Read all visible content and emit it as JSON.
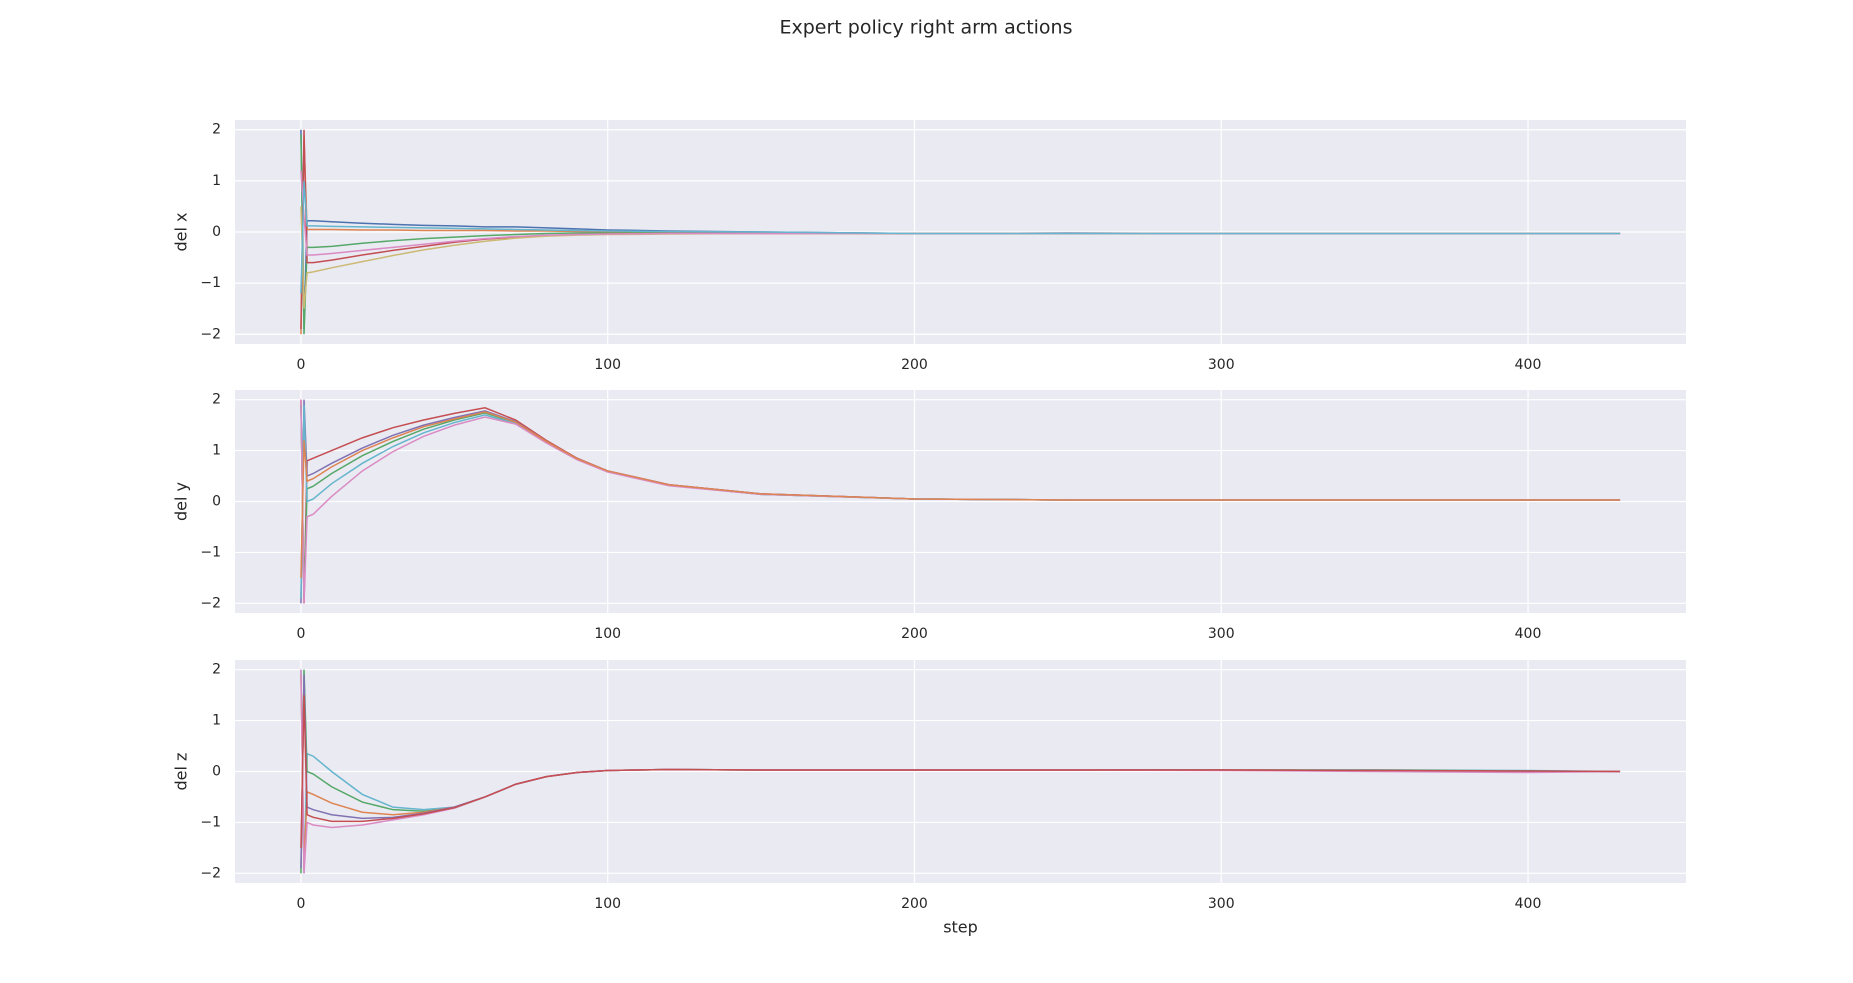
{
  "title": "Expert policy right arm actions",
  "chart_data": [
    {
      "type": "line",
      "ylabel": "del x",
      "x": [
        0,
        1,
        2,
        4,
        10,
        20,
        30,
        40,
        50,
        60,
        70,
        80,
        90,
        100,
        120,
        150,
        200,
        250,
        300,
        350,
        400,
        430
      ],
      "series": [
        {
          "color": "#4C72B0",
          "values": [
            2,
            -1.9,
            0.22,
            0.22,
            0.2,
            0.17,
            0.15,
            0.13,
            0.12,
            0.1,
            0.1,
            0.08,
            0.06,
            0.04,
            0.02,
            0.0,
            -0.03,
            -0.02,
            -0.03,
            -0.03,
            -0.03,
            -0.03
          ]
        },
        {
          "color": "#DD8452",
          "values": [
            -2,
            1.8,
            0.05,
            0.05,
            0.05,
            0.04,
            0.04,
            0.03,
            0.03,
            0.03,
            0.02,
            0.02,
            0.01,
            0.0,
            0.0,
            -0.01,
            -0.03,
            -0.03,
            -0.03,
            -0.03,
            -0.03,
            -0.03
          ]
        },
        {
          "color": "#55A868",
          "values": [
            1.9,
            -2,
            -0.3,
            -0.3,
            -0.28,
            -0.22,
            -0.17,
            -0.13,
            -0.1,
            -0.07,
            -0.05,
            -0.03,
            -0.02,
            -0.02,
            -0.02,
            -0.02,
            -0.03,
            -0.03,
            -0.03,
            -0.03,
            -0.03,
            -0.03
          ]
        },
        {
          "color": "#C44E52",
          "values": [
            -1.9,
            2,
            -0.6,
            -0.6,
            -0.55,
            -0.45,
            -0.36,
            -0.28,
            -0.2,
            -0.14,
            -0.1,
            -0.07,
            -0.05,
            -0.04,
            -0.03,
            -0.03,
            -0.03,
            -0.03,
            -0.03,
            -0.03,
            -0.03,
            -0.03
          ]
        },
        {
          "color": "#CCB974",
          "values": [
            0.5,
            -1.5,
            -0.8,
            -0.78,
            -0.7,
            -0.58,
            -0.46,
            -0.35,
            -0.26,
            -0.18,
            -0.12,
            -0.08,
            -0.06,
            -0.05,
            -0.04,
            -0.03,
            -0.03,
            -0.03,
            -0.03,
            -0.03,
            -0.03,
            -0.03
          ]
        },
        {
          "color": "#DA8BC3",
          "values": [
            1.2,
            0.3,
            -0.45,
            -0.45,
            -0.42,
            -0.36,
            -0.3,
            -0.24,
            -0.18,
            -0.13,
            -0.09,
            -0.06,
            -0.05,
            -0.04,
            -0.03,
            -0.03,
            -0.03,
            -0.03,
            -0.03,
            -0.03,
            -0.03,
            -0.03
          ]
        },
        {
          "color": "#64B5CD",
          "values": [
            -1.2,
            1.0,
            0.12,
            0.12,
            0.11,
            0.1,
            0.09,
            0.08,
            0.07,
            0.06,
            0.05,
            0.04,
            0.03,
            0.02,
            0.01,
            0.0,
            -0.03,
            -0.03,
            -0.03,
            -0.03,
            -0.03,
            -0.03
          ]
        }
      ],
      "xlim": [
        -21.5,
        451.5
      ],
      "ylim": [
        -2.19,
        2.19
      ],
      "xticks": [
        0,
        100,
        200,
        300,
        400
      ],
      "yticks": [
        {
          "value": -2,
          "label": "−2"
        },
        {
          "value": -1,
          "label": "−1"
        },
        0,
        1,
        2
      ],
      "grid": true
    },
    {
      "type": "line",
      "ylabel": "del y",
      "x": [
        0,
        1,
        2,
        4,
        10,
        20,
        30,
        40,
        50,
        60,
        70,
        80,
        90,
        100,
        120,
        150,
        200,
        250,
        300,
        350,
        400,
        430
      ],
      "series": [
        {
          "color": "#C44E52",
          "values": [
            2,
            -2,
            0.8,
            0.85,
            1.0,
            1.25,
            1.45,
            1.6,
            1.73,
            1.84,
            1.6,
            1.2,
            0.85,
            0.6,
            0.33,
            0.15,
            0.05,
            0.03,
            0.03,
            0.03,
            0.03,
            0.03
          ]
        },
        {
          "color": "#8172B3",
          "values": [
            -2,
            2,
            0.5,
            0.55,
            0.75,
            1.05,
            1.3,
            1.5,
            1.65,
            1.78,
            1.57,
            1.18,
            0.84,
            0.6,
            0.33,
            0.15,
            0.05,
            0.03,
            0.03,
            0.03,
            0.03,
            0.03
          ]
        },
        {
          "color": "#55A868",
          "values": [
            1.9,
            -1.9,
            0.25,
            0.3,
            0.55,
            0.9,
            1.18,
            1.42,
            1.6,
            1.74,
            1.55,
            1.17,
            0.83,
            0.59,
            0.32,
            0.14,
            0.05,
            0.03,
            0.03,
            0.03,
            0.03,
            0.03
          ]
        },
        {
          "color": "#64B5CD",
          "values": [
            -1.9,
            1.9,
            0.0,
            0.05,
            0.35,
            0.75,
            1.08,
            1.35,
            1.55,
            1.7,
            1.53,
            1.16,
            0.83,
            0.59,
            0.32,
            0.14,
            0.05,
            0.03,
            0.03,
            0.03,
            0.03,
            0.03
          ]
        },
        {
          "color": "#DA8BC3",
          "values": [
            2,
            -2,
            -0.3,
            -0.25,
            0.1,
            0.6,
            0.98,
            1.28,
            1.5,
            1.66,
            1.52,
            1.15,
            0.82,
            0.58,
            0.31,
            0.14,
            0.05,
            0.03,
            0.03,
            0.03,
            0.03,
            0.03
          ]
        },
        {
          "color": "#DD8452",
          "values": [
            -1.5,
            1.2,
            0.4,
            0.45,
            0.68,
            1.0,
            1.25,
            1.47,
            1.62,
            1.76,
            1.56,
            1.18,
            0.84,
            0.6,
            0.33,
            0.15,
            0.05,
            0.03,
            0.03,
            0.03,
            0.03,
            0.03
          ]
        }
      ],
      "xlim": [
        -21.5,
        451.5
      ],
      "ylim": [
        -2.19,
        2.19
      ],
      "xticks": [
        0,
        100,
        200,
        300,
        400
      ],
      "yticks": [
        {
          "value": -2,
          "label": "−2"
        },
        {
          "value": -1,
          "label": "−1"
        },
        0,
        1,
        2
      ],
      "grid": true
    },
    {
      "type": "line",
      "ylabel": "del z",
      "xlabel": "step",
      "x": [
        0,
        1,
        2,
        4,
        10,
        20,
        30,
        40,
        50,
        60,
        70,
        80,
        90,
        100,
        120,
        150,
        200,
        250,
        300,
        350,
        400,
        430
      ],
      "series": [
        {
          "color": "#64B5CD",
          "values": [
            2,
            -2,
            0.35,
            0.3,
            0.0,
            -0.45,
            -0.7,
            -0.75,
            -0.7,
            -0.5,
            -0.25,
            -0.1,
            -0.02,
            0.02,
            0.04,
            0.03,
            0.03,
            0.03,
            0.03,
            0.03,
            0.02,
            0.0
          ]
        },
        {
          "color": "#55A868",
          "values": [
            -2,
            2,
            0.0,
            -0.05,
            -0.3,
            -0.6,
            -0.75,
            -0.78,
            -0.72,
            -0.5,
            -0.25,
            -0.1,
            -0.02,
            0.02,
            0.04,
            0.03,
            0.03,
            0.03,
            0.03,
            0.03,
            0.01,
            0.0
          ]
        },
        {
          "color": "#DD8452",
          "values": [
            1.9,
            -1.9,
            -0.4,
            -0.45,
            -0.62,
            -0.8,
            -0.85,
            -0.8,
            -0.7,
            -0.5,
            -0.25,
            -0.1,
            -0.02,
            0.02,
            0.04,
            0.03,
            0.03,
            0.03,
            0.03,
            0.02,
            0.0,
            0.0
          ]
        },
        {
          "color": "#8172B3",
          "values": [
            -1.9,
            1.9,
            -0.7,
            -0.75,
            -0.85,
            -0.92,
            -0.9,
            -0.82,
            -0.7,
            -0.5,
            -0.25,
            -0.1,
            -0.02,
            0.02,
            0.04,
            0.03,
            0.03,
            0.03,
            0.03,
            0.02,
            0.0,
            0.0
          ]
        },
        {
          "color": "#DA8BC3",
          "values": [
            2,
            -2,
            -1.0,
            -1.05,
            -1.1,
            -1.05,
            -0.95,
            -0.85,
            -0.72,
            -0.5,
            -0.25,
            -0.1,
            -0.02,
            0.02,
            0.04,
            0.03,
            0.03,
            0.03,
            0.02,
            0.0,
            -0.02,
            0.0
          ]
        },
        {
          "color": "#C44E52",
          "values": [
            -1.5,
            1.5,
            -0.85,
            -0.9,
            -0.98,
            -0.98,
            -0.92,
            -0.83,
            -0.71,
            -0.5,
            -0.25,
            -0.1,
            -0.02,
            0.02,
            0.04,
            0.03,
            0.03,
            0.03,
            0.03,
            0.02,
            0.01,
            0.0
          ]
        }
      ],
      "xlim": [
        -21.5,
        451.5
      ],
      "ylim": [
        -2.19,
        2.19
      ],
      "xticks": [
        0,
        100,
        200,
        300,
        400
      ],
      "yticks": [
        {
          "value": -2,
          "label": "−2"
        },
        {
          "value": -1,
          "label": "−1"
        },
        0,
        1,
        2
      ],
      "grid": true
    }
  ]
}
